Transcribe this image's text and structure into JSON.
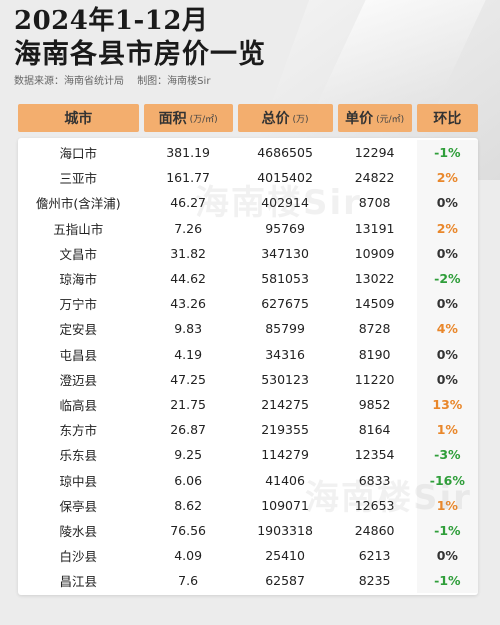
{
  "header": {
    "title_line1": "2024年1-12月",
    "title_line2": "海南各县市房价一览",
    "source": "数据来源：海南省统计局",
    "author": "制图：海南楼Sir"
  },
  "table": {
    "columns": [
      {
        "label": "城市",
        "unit": ""
      },
      {
        "label": "面积",
        "unit": "(万/㎡)"
      },
      {
        "label": "总价",
        "unit": "(万)"
      },
      {
        "label": "单价",
        "unit": "(元/㎡)"
      },
      {
        "label": "环比",
        "unit": ""
      }
    ],
    "rows": [
      {
        "city": "海口市",
        "area": "381.19",
        "total": "4686505",
        "unit_price": "12294",
        "mom": "-1%",
        "dir": "neg"
      },
      {
        "city": "三亚市",
        "area": "161.77",
        "total": "4015402",
        "unit_price": "24822",
        "mom": "2%",
        "dir": "pos"
      },
      {
        "city": "儋州市(含洋浦)",
        "area": "46.27",
        "total": "402914",
        "unit_price": "8708",
        "mom": "0%",
        "dir": "zero"
      },
      {
        "city": "五指山市",
        "area": "7.26",
        "total": "95769",
        "unit_price": "13191",
        "mom": "2%",
        "dir": "pos"
      },
      {
        "city": "文昌市",
        "area": "31.82",
        "total": "347130",
        "unit_price": "10909",
        "mom": "0%",
        "dir": "zero"
      },
      {
        "city": "琼海市",
        "area": "44.62",
        "total": "581053",
        "unit_price": "13022",
        "mom": "-2%",
        "dir": "neg"
      },
      {
        "city": "万宁市",
        "area": "43.26",
        "total": "627675",
        "unit_price": "14509",
        "mom": "0%",
        "dir": "zero"
      },
      {
        "city": "定安县",
        "area": "9.83",
        "total": "85799",
        "unit_price": "8728",
        "mom": "4%",
        "dir": "pos"
      },
      {
        "city": "屯昌县",
        "area": "4.19",
        "total": "34316",
        "unit_price": "8190",
        "mom": "0%",
        "dir": "zero"
      },
      {
        "city": "澄迈县",
        "area": "47.25",
        "total": "530123",
        "unit_price": "11220",
        "mom": "0%",
        "dir": "zero"
      },
      {
        "city": "临高县",
        "area": "21.75",
        "total": "214275",
        "unit_price": "9852",
        "mom": "13%",
        "dir": "pos"
      },
      {
        "city": "东方市",
        "area": "26.87",
        "total": "219355",
        "unit_price": "8164",
        "mom": "1%",
        "dir": "pos"
      },
      {
        "city": "乐东县",
        "area": "9.25",
        "total": "114279",
        "unit_price": "12354",
        "mom": "-3%",
        "dir": "neg"
      },
      {
        "city": "琼中县",
        "area": "6.06",
        "total": "41406",
        "unit_price": "6833",
        "mom": "-16%",
        "dir": "neg"
      },
      {
        "city": "保亭县",
        "area": "8.62",
        "total": "109071",
        "unit_price": "12653",
        "mom": "1%",
        "dir": "pos"
      },
      {
        "city": "陵水县",
        "area": "76.56",
        "total": "1903318",
        "unit_price": "24860",
        "mom": "-1%",
        "dir": "neg"
      },
      {
        "city": "白沙县",
        "area": "4.09",
        "total": "25410",
        "unit_price": "6213",
        "mom": "0%",
        "dir": "zero"
      },
      {
        "city": "昌江县",
        "area": "7.6",
        "total": "62587",
        "unit_price": "8235",
        "mom": "-1%",
        "dir": "neg"
      }
    ]
  },
  "watermark": "海南楼Sir",
  "colors": {
    "header_bg": "#f3ae6e",
    "positive": "#e9872b",
    "negative": "#2f9e3a"
  }
}
